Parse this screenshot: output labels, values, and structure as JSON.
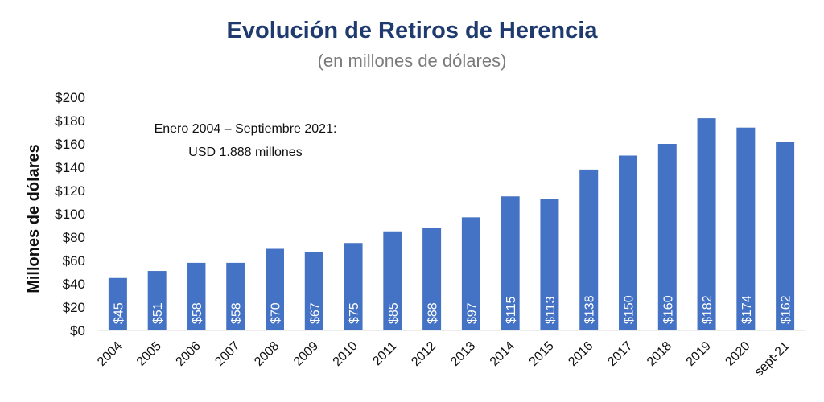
{
  "chart_data": {
    "type": "bar",
    "title": "Evolución de Retiros de Herencia",
    "subtitle": "(en millones de dólares)",
    "ylabel": "Millones de dólares",
    "xlabel": "",
    "categories": [
      "2004",
      "2005",
      "2006",
      "2007",
      "2008",
      "2009",
      "2010",
      "2011",
      "2012",
      "2013",
      "2014",
      "2015",
      "2016",
      "2017",
      "2018",
      "2019",
      "2020",
      "sept-21"
    ],
    "values": [
      45,
      51,
      58,
      58,
      70,
      67,
      75,
      85,
      88,
      97,
      115,
      113,
      138,
      150,
      160,
      182,
      174,
      162
    ],
    "value_labels": [
      "$45",
      "$51",
      "$58",
      "$58",
      "$70",
      "$67",
      "$75",
      "$85",
      "$88",
      "$97",
      "$115",
      "$113",
      "$138",
      "$150",
      "$160",
      "$182",
      "$174",
      "$162"
    ],
    "yticks": [
      "$0",
      "$20",
      "$40",
      "$60",
      "$80",
      "$100",
      "$120",
      "$140",
      "$160",
      "$180",
      "$200"
    ],
    "ylim": [
      0,
      200
    ],
    "grid": false,
    "bar_color": "#4472c4",
    "annotation": {
      "line1": "Enero 2004 – Septiembre 2021:",
      "line2": "USD 1.888 millones"
    }
  }
}
